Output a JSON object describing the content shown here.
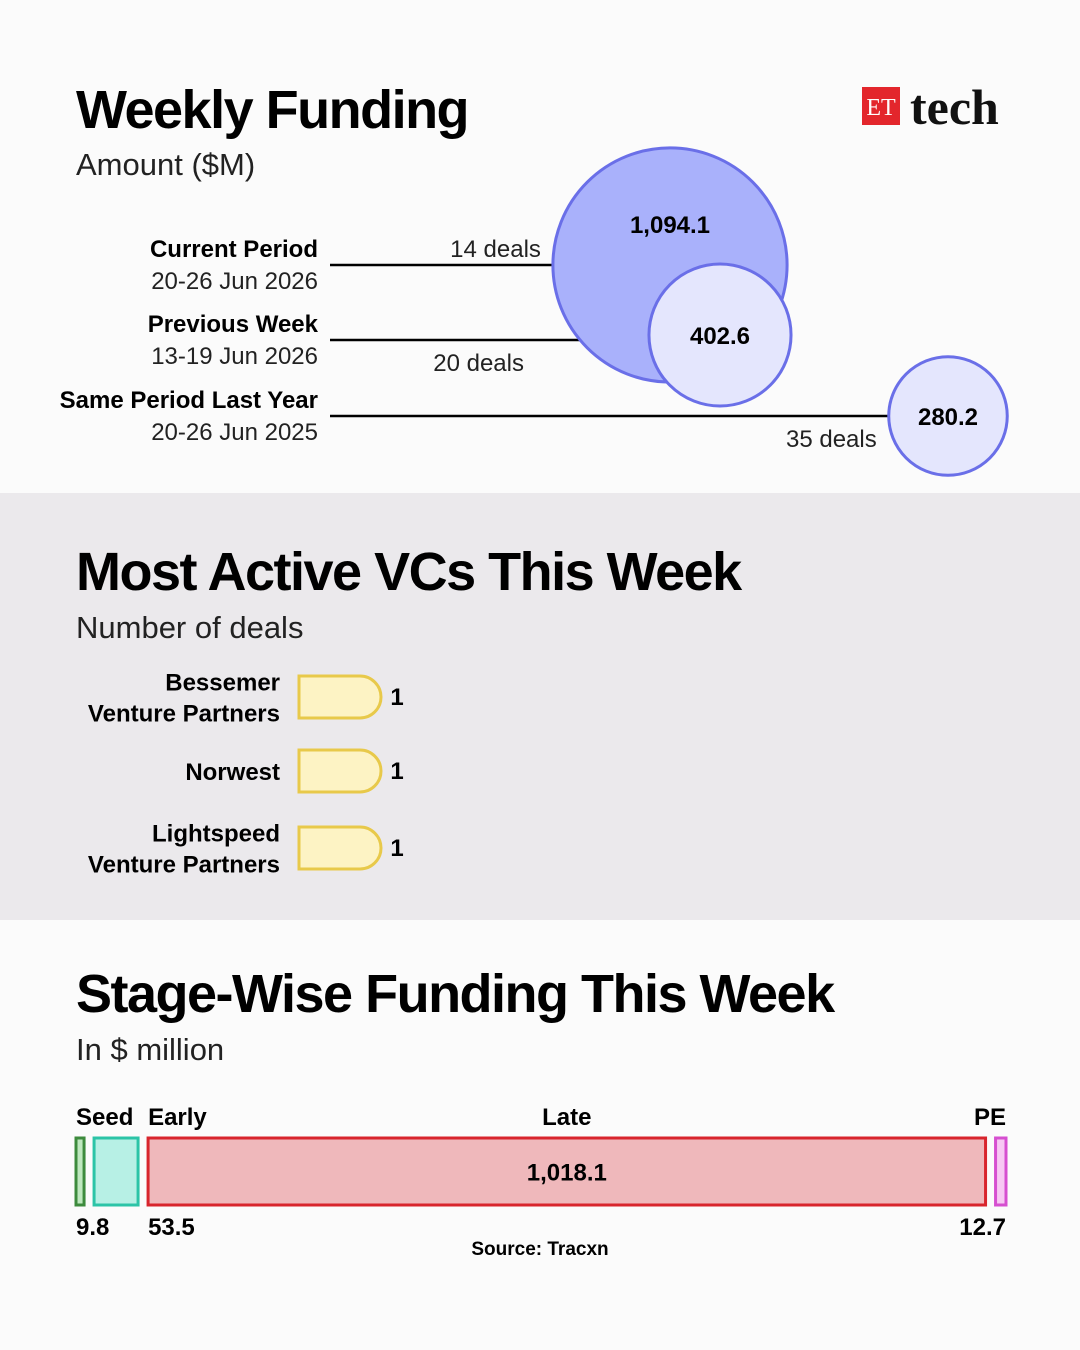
{
  "logo": {
    "mark": "ET",
    "text": "tech"
  },
  "chart_data": [
    {
      "type": "bubble",
      "title": "Weekly Funding",
      "subtitle": "Amount ($M)",
      "categories": [
        "Current Period",
        "Previous Week",
        "Same Period Last Year"
      ],
      "periods": [
        "20-26 Jun 2026",
        "13-19 Jun 2026",
        "20-26 Jun 2025"
      ],
      "deal_labels": [
        "14 deals",
        "20 deals",
        "35 deals"
      ],
      "values": [
        1094.1,
        402.6,
        280.2
      ],
      "value_labels": [
        "1,094.1",
        "402.6",
        "280.2"
      ],
      "colors": [
        "#a9b1fb",
        "#e4e6fd",
        "#e4e6fd"
      ],
      "stroke": "#6a6fe8"
    },
    {
      "type": "bar",
      "title": "Most Active VCs This Week",
      "subtitle": "Number of deals",
      "categories": [
        [
          "Bessemer",
          "Venture Partners"
        ],
        [
          "Norwest"
        ],
        [
          "Lightspeed",
          "Venture Partners"
        ]
      ],
      "values": [
        1,
        1,
        1
      ],
      "color": "#fdf3c4",
      "stroke": "#e8c94a"
    },
    {
      "type": "stacked_bar",
      "title": "Stage-Wise Funding This Week",
      "subtitle": "In $ million",
      "categories": [
        "Seed",
        "Early",
        "Late",
        "PE"
      ],
      "values": [
        9.8,
        53.5,
        1018.1,
        12.7
      ],
      "value_labels": [
        "9.8",
        "53.5",
        "1,018.1",
        "12.7"
      ],
      "colors": [
        "#bfe8bf",
        "#b7f0e5",
        "#efb8bb",
        "#f7c8f3"
      ],
      "strokes": [
        "#3d8b3d",
        "#2cc4a7",
        "#d8252d",
        "#d64fd0"
      ],
      "source": "Source: Tracxn"
    }
  ]
}
